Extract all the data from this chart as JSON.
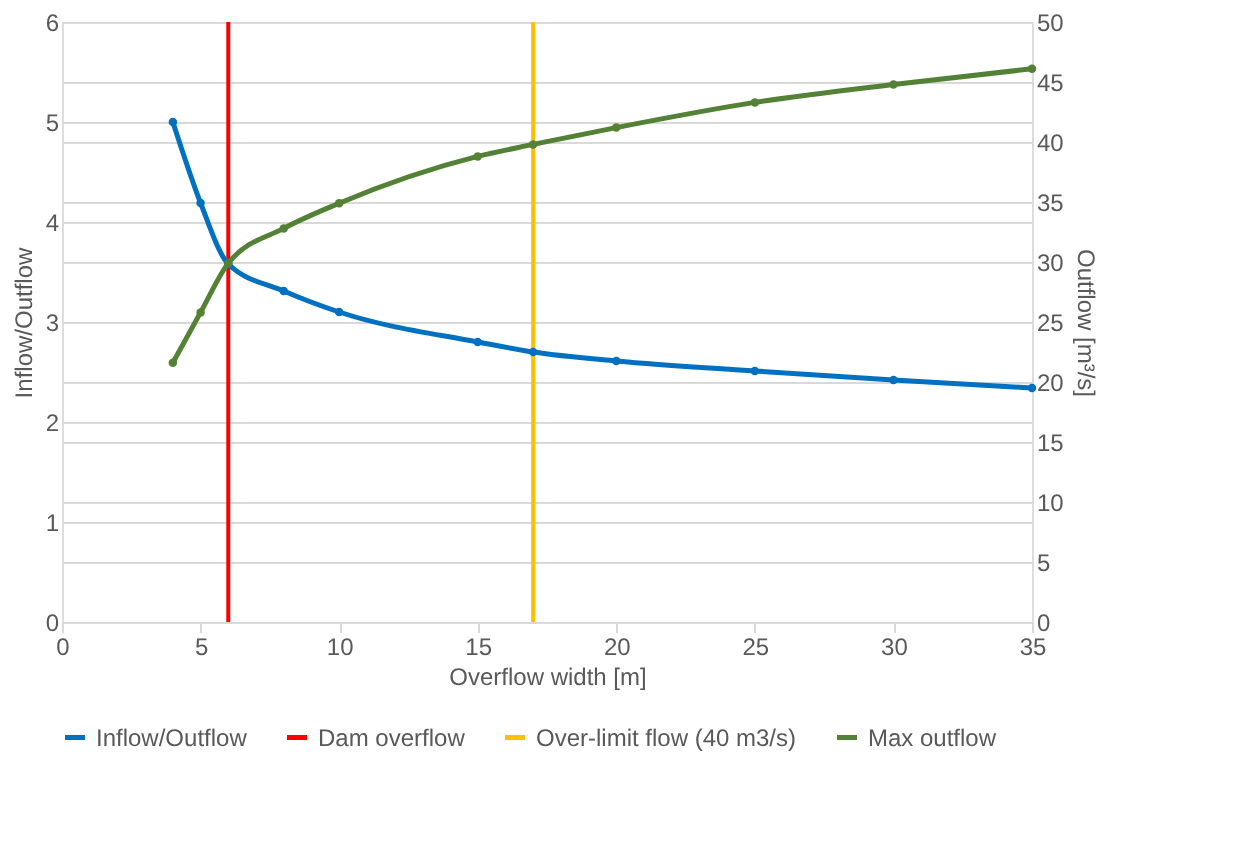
{
  "chart_data": {
    "type": "line",
    "xlabel": "Overflow width [m]",
    "ylabel": "Inflow/Outflow",
    "y2label": "Outflow [m³/s]",
    "x": [
      4,
      5,
      6,
      8,
      10,
      15,
      17,
      20,
      25,
      30,
      35
    ],
    "series": [
      {
        "name": "Inflow/Outflow",
        "color": "#0070c0",
        "values": [
          5.0,
          4.19,
          3.58,
          3.31,
          3.1,
          2.8,
          2.7,
          2.61,
          2.51,
          2.42,
          2.34
        ]
      },
      {
        "name": "Max outflow",
        "color": "#538135",
        "axis": "y2",
        "values": [
          21.6,
          25.8,
          29.9,
          32.8,
          34.9,
          38.8,
          39.8,
          41.2,
          43.3,
          44.8,
          46.1
        ]
      }
    ],
    "ref_lines": [
      {
        "axis": "x",
        "value": 6,
        "label": "Dam overflow",
        "color": "#ff0000"
      },
      {
        "axis": "x",
        "value": 17,
        "label": "Over-limit flow (40 m3/s)",
        "color": "#ffc000"
      }
    ],
    "xlim": [
      0,
      35
    ],
    "xticks": [
      0,
      5,
      10,
      15,
      20,
      25,
      30,
      35
    ],
    "ylim": [
      0,
      6
    ],
    "yticks": [
      0,
      1,
      2,
      3,
      4,
      5,
      6
    ],
    "y2lim": [
      0,
      50
    ],
    "y2ticks": [
      0,
      5,
      10,
      15,
      20,
      25,
      30,
      35,
      40,
      45,
      50
    ],
    "grid": "y",
    "legend": "bottom",
    "marker": "circle",
    "line_style": "solid"
  }
}
